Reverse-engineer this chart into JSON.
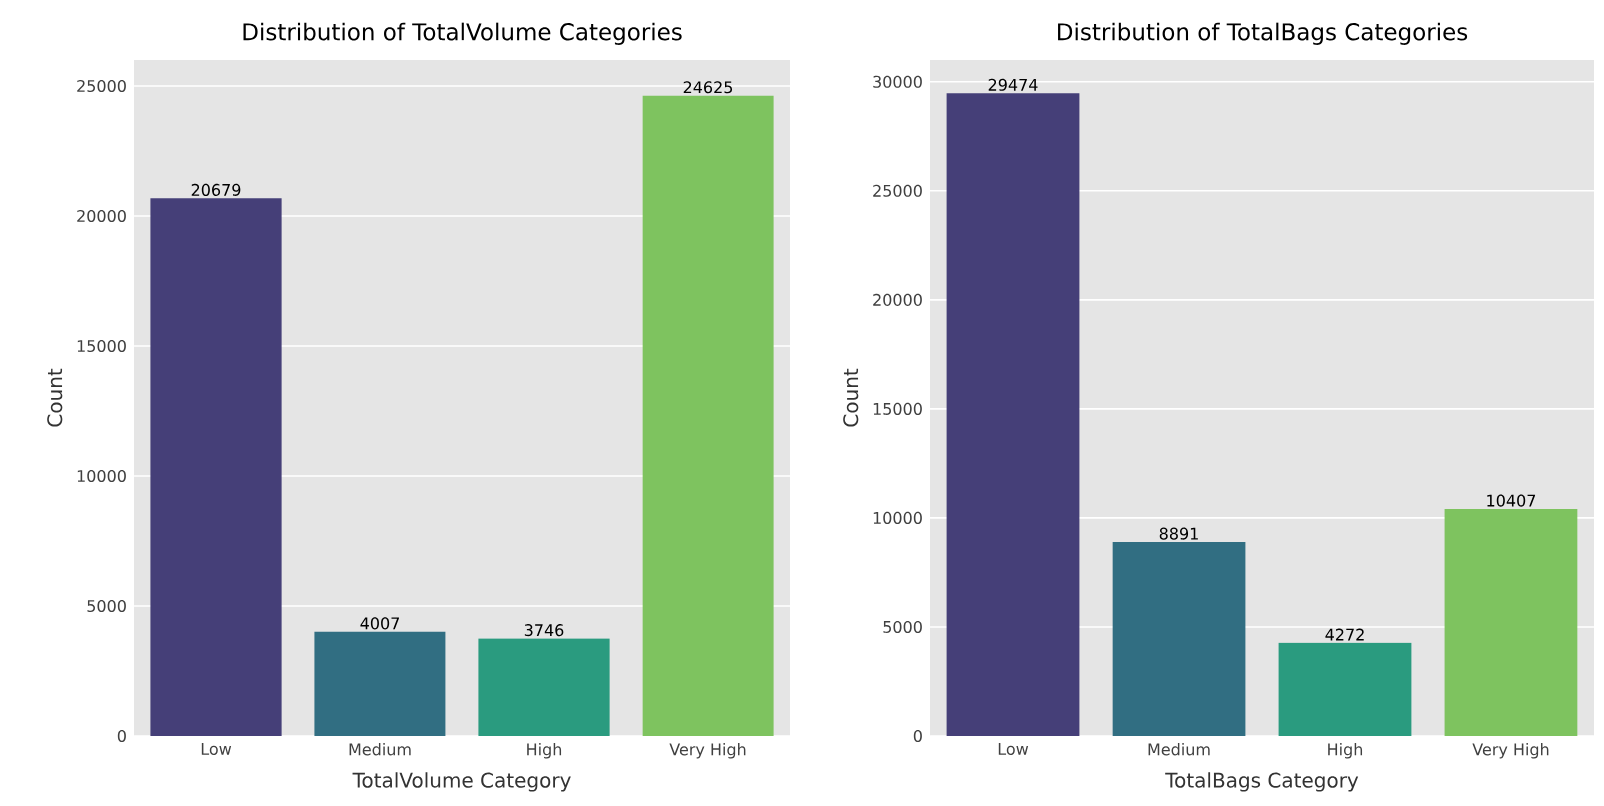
{
  "chart_data": [
    {
      "type": "bar",
      "title": "Distribution of TotalVolume Categories",
      "xlabel": "TotalVolume Category",
      "ylabel": "Count",
      "categories": [
        "Low",
        "Medium",
        "High",
        "Very High"
      ],
      "values": [
        20679,
        4007,
        3746,
        24625
      ],
      "colors": [
        "#453f78",
        "#316e82",
        "#2a9b7f",
        "#7ec35f"
      ],
      "ylim": [
        0,
        26000
      ],
      "yticks": [
        0,
        5000,
        10000,
        15000,
        20000,
        25000
      ],
      "grid": "y",
      "data_labels": true
    },
    {
      "type": "bar",
      "title": "Distribution of TotalBags Categories",
      "xlabel": "TotalBags Category",
      "ylabel": "Count",
      "categories": [
        "Low",
        "Medium",
        "High",
        "Very High"
      ],
      "values": [
        29474,
        8891,
        4272,
        10407
      ],
      "colors": [
        "#453f78",
        "#316e82",
        "#2a9b7f",
        "#7ec35f"
      ],
      "ylim": [
        0,
        31000
      ],
      "yticks": [
        0,
        5000,
        10000,
        15000,
        20000,
        25000,
        30000
      ],
      "grid": "y",
      "data_labels": true
    }
  ]
}
